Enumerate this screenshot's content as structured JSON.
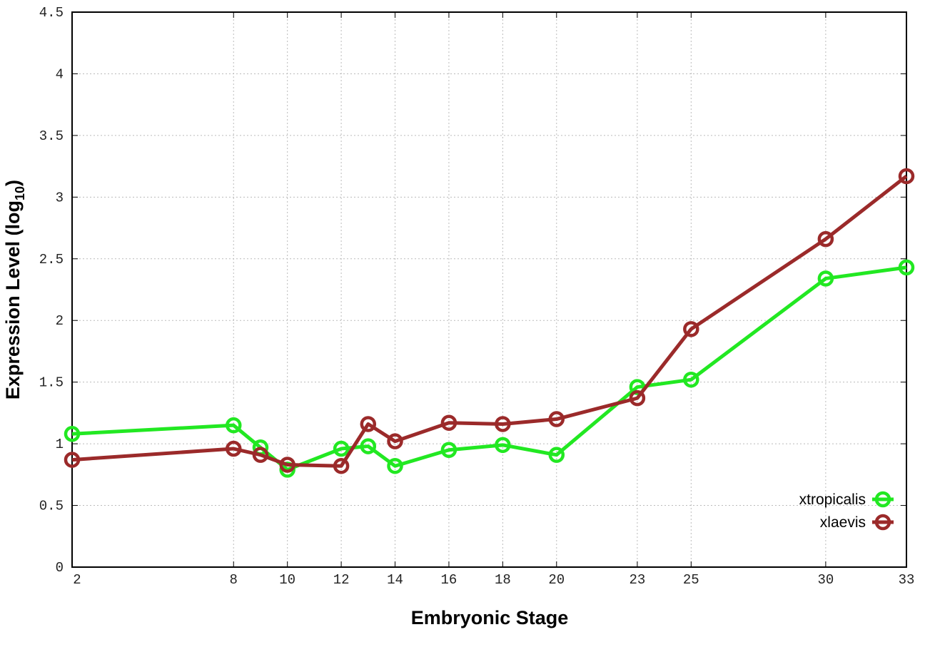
{
  "chart_data": {
    "type": "line",
    "title": "",
    "xlabel": "Embryonic Stage",
    "ylabel": "Expression Level (log",
    "ylabel_sub": "10",
    "ylabel_end": ")",
    "xlim": [
      2,
      33
    ],
    "ylim": [
      0,
      4.5
    ],
    "grid": true,
    "legend_position": "bottom-right",
    "x_ticks": [
      2,
      8,
      10,
      12,
      14,
      16,
      18,
      20,
      23,
      25,
      30,
      33
    ],
    "y_ticks": [
      0,
      0.5,
      1,
      1.5,
      2,
      2.5,
      3,
      3.5,
      4,
      4.5
    ],
    "y_tick_labels": [
      "0",
      "0.5",
      "1",
      "1.5",
      "2",
      "2.5",
      "3",
      "3.5",
      "4",
      "4.5"
    ],
    "x": [
      2,
      8,
      9,
      10,
      12,
      13,
      14,
      16,
      18,
      20,
      23,
      25,
      30,
      33
    ],
    "series": [
      {
        "name": "xtropicalis",
        "color": "#22e822",
        "values": [
          1.08,
          1.15,
          0.97,
          0.79,
          0.96,
          0.98,
          0.82,
          0.95,
          0.99,
          0.91,
          1.46,
          1.52,
          2.34,
          2.43
        ]
      },
      {
        "name": "xlaevis",
        "color": "#9b2a2a",
        "values": [
          0.87,
          0.96,
          0.91,
          0.83,
          0.82,
          1.16,
          1.02,
          1.17,
          1.16,
          1.2,
          1.37,
          1.93,
          2.66,
          3.17
        ]
      }
    ]
  }
}
